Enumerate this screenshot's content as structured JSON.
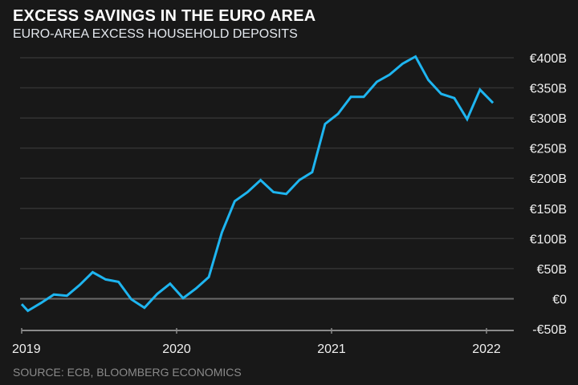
{
  "chart_data": {
    "type": "line",
    "title": "EXCESS SAVINGS IN THE EURO AREA",
    "subtitle": "EURO-AREA EXCESS HOUSEHOLD DEPOSITS",
    "source": "SOURCE: ECB, BLOOMBERG ECONOMICS",
    "xlabel": "",
    "ylabel": "",
    "ylim": [
      -50,
      400
    ],
    "grid": true,
    "y_ticks": [
      400,
      350,
      300,
      250,
      200,
      150,
      100,
      50,
      0,
      -50
    ],
    "y_tick_labels": [
      "€400B",
      "€350B",
      "€300B",
      "€250B",
      "€200B",
      "€150B",
      "€100B",
      "€50B",
      "€0",
      "-€50B"
    ],
    "x_ticks": [
      2019,
      2020,
      2021,
      2022
    ],
    "x_tick_labels": [
      "2019",
      "2020",
      "2021",
      "2022"
    ],
    "xlim": [
      2019,
      2022.1
    ],
    "line_color": "#1eb5f0",
    "series": [
      {
        "name": "Excess household deposits (€B)",
        "x": [
          2019.0,
          2019.04,
          2019.125,
          2019.208,
          2019.292,
          2019.375,
          2019.458,
          2019.542,
          2019.625,
          2019.708,
          2019.792,
          2019.875,
          2019.958,
          2020.042,
          2020.125,
          2020.208,
          2020.292,
          2020.375,
          2020.458,
          2020.542,
          2020.625,
          2020.708,
          2020.792,
          2020.875,
          2020.958,
          2021.042,
          2021.125,
          2021.208,
          2021.292,
          2021.375,
          2021.458,
          2021.542,
          2021.625,
          2021.708,
          2021.792,
          2021.875,
          2021.958,
          2022.042
        ],
        "values": [
          -9,
          -20,
          -7,
          7,
          5,
          23,
          44,
          32,
          28,
          -1,
          -15,
          8,
          25,
          1,
          17,
          36,
          110,
          162,
          177,
          197,
          177,
          174,
          197,
          210,
          290,
          307,
          335,
          335,
          360,
          372,
          390,
          402,
          363,
          340,
          333,
          298,
          347,
          325
        ]
      }
    ]
  }
}
